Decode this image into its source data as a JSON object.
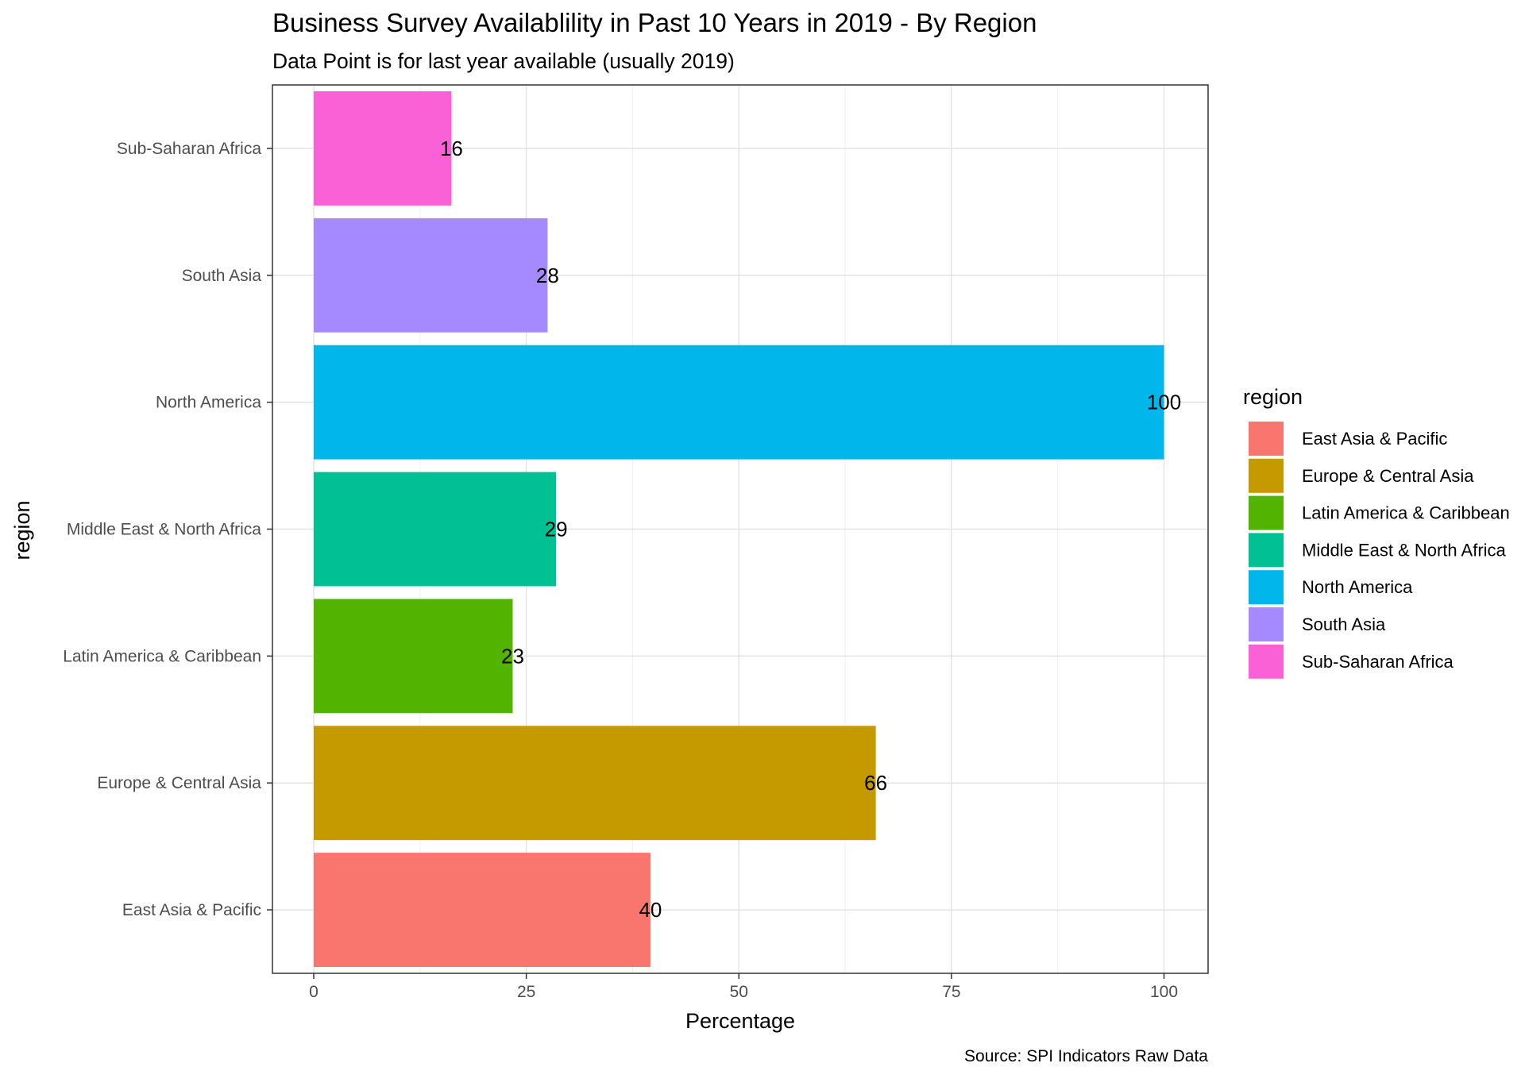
{
  "chart_data": {
    "type": "bar",
    "orientation": "horizontal",
    "title": "Business Survey Availablility in Past 10 Years in 2019 - By Region",
    "subtitle": "Data Point is for last year available (usually 2019)",
    "xlabel": "Percentage",
    "ylabel": "region",
    "caption": "Source: SPI Indicators Raw Data",
    "xlim": [
      0,
      100
    ],
    "x_ticks": [
      0,
      25,
      50,
      75,
      100
    ],
    "grid": true,
    "categories": [
      "East Asia & Pacific",
      "Europe & Central Asia",
      "Latin America & Caribbean",
      "Middle East & North Africa",
      "North America",
      "South Asia",
      "Sub-Saharan Africa"
    ],
    "values": [
      39.6,
      66.1,
      23.4,
      28.5,
      100,
      27.5,
      16.2
    ],
    "data_labels": [
      "40",
      "66",
      "23",
      "29",
      "100",
      "28",
      "16"
    ],
    "colors": [
      "#F8766D",
      "#C49A00",
      "#53B400",
      "#00C094",
      "#00B6EB",
      "#A58AFF",
      "#FB61D7"
    ],
    "legend": {
      "title": "region",
      "position": "right",
      "entries": [
        "East Asia & Pacific",
        "Europe & Central Asia",
        "Latin America & Caribbean",
        "Middle East & North Africa",
        "North America",
        "South Asia",
        "Sub-Saharan Africa"
      ]
    }
  }
}
